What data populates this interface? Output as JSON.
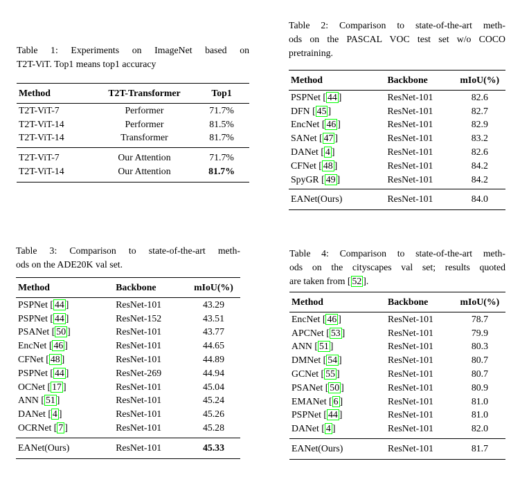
{
  "page": {
    "background": "#ffffff",
    "text_color": "#000000",
    "citation_box_color": "#00ff00"
  },
  "tables": [
    {
      "name": "table-1",
      "caption_lines": [
        "Table 1: Experiments on ImageNet based on",
        "T2T-ViT. Top1 means top1 accuracy"
      ],
      "columns": [
        {
          "label": "Method",
          "align": "left",
          "width": "33%"
        },
        {
          "label": "T2T-Transformer",
          "align": "center",
          "width": "43%"
        },
        {
          "label": "Top1",
          "align": "center",
          "width": "24%"
        }
      ],
      "groups": [
        [
          [
            "T2T-ViT-7",
            "Performer",
            "71.7%"
          ],
          [
            "T2T-ViT-14",
            "Performer",
            "81.5%"
          ],
          [
            "T2T-ViT-14",
            "Transformer",
            "81.7%"
          ]
        ],
        [
          [
            "T2T-ViT-7",
            "Our Attention",
            "71.7%"
          ],
          [
            "T2T-ViT-14",
            "Our Attention",
            "**81.7%**"
          ]
        ]
      ]
    },
    {
      "name": "table-2",
      "caption_lines": [
        "Table 2: Comparison to state-of-the-art meth-",
        "ods on the PASCAL VOC test set w/o COCO",
        "pretraining."
      ],
      "columns": [
        {
          "label": "Method",
          "align": "left",
          "width": "45%"
        },
        {
          "label": "Backbone",
          "align": "left",
          "width": "31%"
        },
        {
          "label": "mIoU(%)",
          "align": "center",
          "width": "24%"
        }
      ],
      "groups": [
        [
          [
            "PSPNet [[44]]",
            "ResNet-101",
            "82.6"
          ],
          [
            "DFN [[45]]",
            "ResNet-101",
            "82.7"
          ],
          [
            "EncNet [[46]]",
            "ResNet-101",
            "82.9"
          ],
          [
            "SANet [[47]]",
            "ResNet-101",
            "83.2"
          ],
          [
            "DANet [[4]]",
            "ResNet-101",
            "82.6"
          ],
          [
            "CFNet [[48]]",
            "ResNet-101",
            "84.2"
          ],
          [
            "SpyGR [[49]]",
            "ResNet-101",
            "84.2"
          ]
        ],
        [
          [
            "EANet(Ours)",
            "ResNet-101",
            "84.0"
          ]
        ]
      ]
    },
    {
      "name": "table-3",
      "caption_lines": [
        "Table 3: Comparison to state-of-the-art meth-",
        "ods on the ADE20K val set."
      ],
      "columns": [
        {
          "label": "Method",
          "align": "left",
          "width": "44%"
        },
        {
          "label": "Backbone",
          "align": "left",
          "width": "32%"
        },
        {
          "label": "mIoU(%)",
          "align": "center",
          "width": "24%"
        }
      ],
      "groups": [
        [
          [
            "PSPNet [[44]]",
            "ResNet-101",
            "43.29"
          ],
          [
            "PSPNet [[44]]",
            "ResNet-152",
            "43.51"
          ],
          [
            "PSANet [[50]]",
            "ResNet-101",
            "43.77"
          ],
          [
            "EncNet [[46]]",
            "ResNet-101",
            "44.65"
          ],
          [
            "CFNet [[48]]",
            "ResNet-101",
            "44.89"
          ],
          [
            "PSPNet [[44]]",
            "ResNet-269",
            "44.94"
          ],
          [
            "OCNet [[17]]",
            "ResNet-101",
            "45.04"
          ],
          [
            "ANN [[51]]",
            "ResNet-101",
            "45.24"
          ],
          [
            "DANet [[4]]",
            "ResNet-101",
            "45.26"
          ],
          [
            "OCRNet [[7]]",
            "ResNet-101",
            "45.28"
          ]
        ],
        [
          [
            "EANet(Ours)",
            "ResNet-101",
            "**45.33**"
          ]
        ]
      ]
    },
    {
      "name": "table-4",
      "caption_lines": [
        "Table 4: Comparison to state-of-the-art meth-",
        "ods on the cityscapes val set; results quoted",
        "are taken from [[52]]."
      ],
      "columns": [
        {
          "label": "Method",
          "align": "left",
          "width": "45%"
        },
        {
          "label": "Backbone",
          "align": "left",
          "width": "31%"
        },
        {
          "label": "mIoU(%)",
          "align": "center",
          "width": "24%"
        }
      ],
      "groups": [
        [
          [
            "EncNet [[46]]",
            "ResNet-101",
            "78.7"
          ],
          [
            "APCNet [[53]]",
            "ResNet-101",
            "79.9"
          ],
          [
            "ANN [[51]]",
            "ResNet-101",
            "80.3"
          ],
          [
            "DMNet [[54]]",
            "ResNet-101",
            "80.7"
          ],
          [
            "GCNet [[55]]",
            "ResNet-101",
            "80.7"
          ],
          [
            "PSANet [[50]]",
            "ResNet-101",
            "80.9"
          ],
          [
            "EMANet [[6]]",
            "ResNet-101",
            "81.0"
          ],
          [
            "PSPNet [[44]]",
            "ResNet-101",
            "81.0"
          ],
          [
            "DANet [[4]]",
            "ResNet-101",
            "82.0"
          ]
        ],
        [
          [
            "EANet(Ours)",
            "ResNet-101",
            "81.7"
          ]
        ]
      ]
    }
  ]
}
